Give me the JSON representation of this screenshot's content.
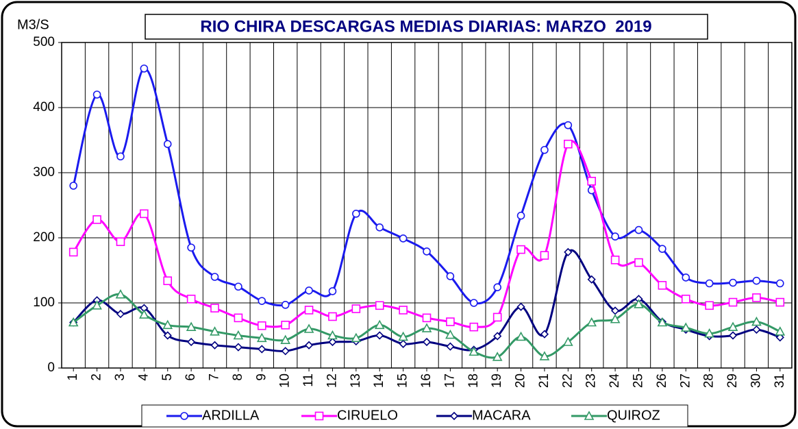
{
  "chart_data": {
    "type": "line",
    "title": "RIO CHIRA DESCARGAS MEDIAS DIARIAS: MARZO  2019",
    "y_label": "M3/S",
    "categories": [
      "1",
      "2",
      "3",
      "4",
      "5",
      "6",
      "7",
      "8",
      "9",
      "10",
      "11",
      "12",
      "13",
      "14",
      "15",
      "16",
      "17",
      "18",
      "19",
      "20",
      "21",
      "22",
      "23",
      "24",
      "25",
      "26",
      "27",
      "28",
      "29",
      "30",
      "31"
    ],
    "ylim": [
      0,
      500
    ],
    "yticks": [
      0,
      100,
      200,
      300,
      400,
      500
    ],
    "grid": true,
    "legend": "bottom",
    "series": [
      {
        "name": "ARDILLA",
        "color": "#1a1aee",
        "marker": "circle",
        "values": [
          280,
          420,
          325,
          460,
          344,
          185,
          140,
          125,
          103,
          97,
          119,
          118,
          237,
          216,
          199,
          179,
          141,
          100,
          124,
          234,
          335,
          373,
          273,
          202,
          212,
          183,
          139,
          130,
          131,
          134,
          130
        ]
      },
      {
        "name": "CIRUELO",
        "color": "#ff00ff",
        "marker": "square",
        "values": [
          178,
          228,
          194,
          237,
          134,
          106,
          92,
          77,
          65,
          66,
          89,
          79,
          91,
          96,
          89,
          77,
          71,
          63,
          78,
          182,
          173,
          344,
          287,
          166,
          162,
          127,
          106,
          96,
          101,
          108,
          101
        ]
      },
      {
        "name": "MACARA",
        "color": "#000080",
        "marker": "diamond",
        "values": [
          70,
          104,
          83,
          92,
          50,
          40,
          35,
          32,
          29,
          26,
          35,
          40,
          41,
          50,
          37,
          40,
          33,
          28,
          49,
          94,
          52,
          178,
          136,
          88,
          106,
          71,
          59,
          49,
          50,
          59,
          47
        ]
      },
      {
        "name": "QUIROZ",
        "color": "#339966",
        "marker": "triangle",
        "values": [
          70,
          96,
          113,
          82,
          66,
          63,
          56,
          50,
          46,
          43,
          60,
          50,
          46,
          66,
          48,
          61,
          51,
          25,
          17,
          48,
          18,
          40,
          70,
          75,
          98,
          70,
          62,
          53,
          63,
          71,
          56
        ]
      }
    ]
  }
}
